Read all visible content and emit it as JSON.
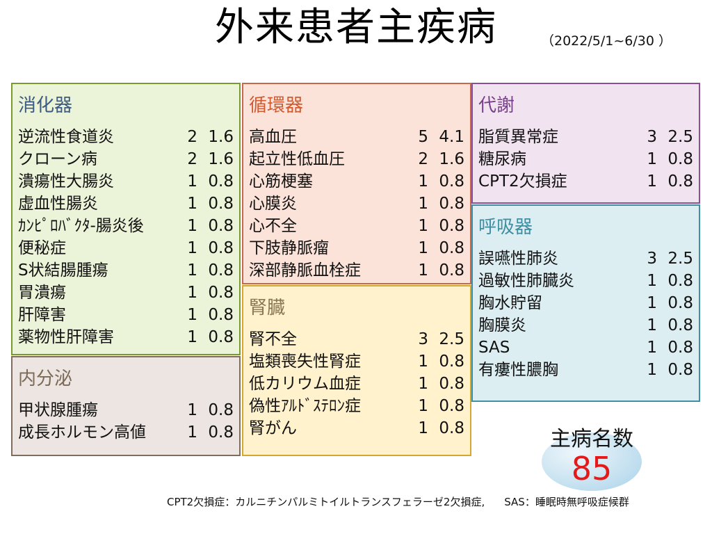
{
  "title": "外来患者主疾病",
  "period": "（2022/5/1~6/30 ）",
  "sections": {
    "digestive": {
      "title": "消化器",
      "rows": [
        {
          "name": "逆流性食道炎",
          "count": "2",
          "pct": "1.6"
        },
        {
          "name": "クローン病",
          "count": "2",
          "pct": "1.6"
        },
        {
          "name": "潰瘍性大腸炎",
          "count": "1",
          "pct": "0.8"
        },
        {
          "name": "虚血性腸炎",
          "count": "1",
          "pct": "0.8"
        },
        {
          "name": "ｶﾝﾋﾟﾛﾊﾞｸﾀ-腸炎後",
          "count": "1",
          "pct": "0.8"
        },
        {
          "name": "便秘症",
          "count": "1",
          "pct": "0.8"
        },
        {
          "name": "S状結腸腫瘍",
          "count": "1",
          "pct": "0.8"
        },
        {
          "name": "胃潰瘍",
          "count": "1",
          "pct": "0.8"
        },
        {
          "name": "肝障害",
          "count": "1",
          "pct": "0.8"
        },
        {
          "name": "薬物性肝障害",
          "count": "1",
          "pct": "0.8"
        }
      ]
    },
    "endocrine": {
      "title": "内分泌",
      "rows": [
        {
          "name": "甲状腺腫瘍",
          "count": "1",
          "pct": "0.8"
        },
        {
          "name": "成長ホルモン高値",
          "count": "1",
          "pct": "0.8"
        }
      ]
    },
    "circulatory": {
      "title": "循環器",
      "rows": [
        {
          "name": "高血圧",
          "count": "5",
          "pct": "4.1"
        },
        {
          "name": "起立性低血圧",
          "count": "2",
          "pct": "1.6"
        },
        {
          "name": "心筋梗塞",
          "count": "1",
          "pct": "0.8"
        },
        {
          "name": "心膜炎",
          "count": "1",
          "pct": "0.8"
        },
        {
          "name": "心不全",
          "count": "1",
          "pct": "0.8"
        },
        {
          "name": "下肢静脈瘤",
          "count": "1",
          "pct": "0.8"
        },
        {
          "name": "深部静脈血栓症",
          "count": "1",
          "pct": "0.8"
        }
      ]
    },
    "renal": {
      "title": "腎臓",
      "rows": [
        {
          "name": "腎不全",
          "count": "3",
          "pct": "2.5"
        },
        {
          "name": "塩類喪失性腎症",
          "count": "1",
          "pct": "0.8"
        },
        {
          "name": "低カリウム血症",
          "count": "1",
          "pct": "0.8"
        },
        {
          "name": "偽性ｱﾙﾄﾞｽﾃﾛﾝ症",
          "count": "1",
          "pct": "0.8"
        },
        {
          "name": "腎がん",
          "count": "1",
          "pct": "0.8"
        }
      ]
    },
    "metabolic": {
      "title": "代謝",
      "rows": [
        {
          "name": "脂質異常症",
          "count": "3",
          "pct": "2.5"
        },
        {
          "name": "糖尿病",
          "count": "1",
          "pct": "0.8"
        },
        {
          "name": "CPT2欠損症",
          "count": "1",
          "pct": "0.8"
        }
      ]
    },
    "respiratory": {
      "title": "呼吸器",
      "rows": [
        {
          "name": "誤嚥性肺炎",
          "count": "3",
          "pct": "2.5"
        },
        {
          "name": "過敏性肺臓炎",
          "count": "1",
          "pct": "0.8"
        },
        {
          "name": "胸水貯留",
          "count": "1",
          "pct": "0.8"
        },
        {
          "name": "胸膜炎",
          "count": "1",
          "pct": "0.8"
        },
        {
          "name": "SAS",
          "count": "1",
          "pct": "0.8"
        },
        {
          "name": "有瘻性膿胸",
          "count": "1",
          "pct": "0.8"
        }
      ]
    }
  },
  "total": {
    "label": "主病名数",
    "value": "85"
  },
  "footnotes": [
    "CPT2欠損症：カルニチンパルミトイルトランスフェラーゼ2欠損症,",
    "SAS：睡眠時無呼吸症候群"
  ],
  "colors": {
    "digestive": "#7a9a2d",
    "endocrine": "#7f6d60",
    "circulatory": "#c7684a",
    "renal": "#d6a62d",
    "metabolic": "#8a4f95",
    "respiratory": "#3f8ea2",
    "total_value": "#e41a1a"
  }
}
